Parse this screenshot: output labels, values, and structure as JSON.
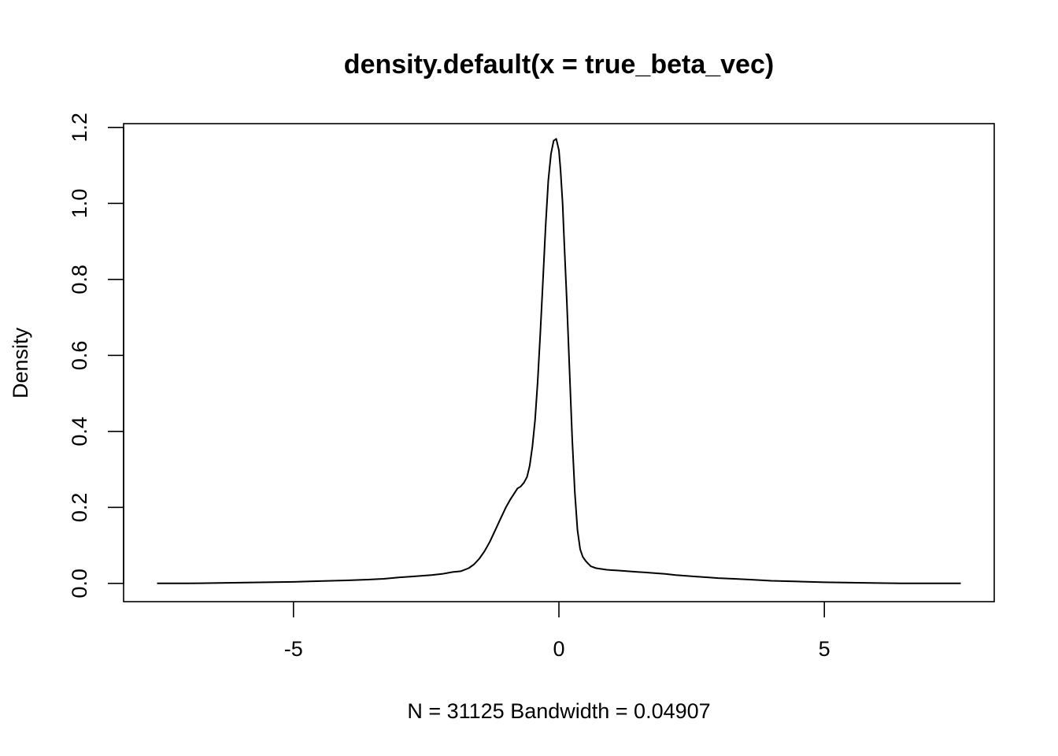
{
  "chart_data": {
    "type": "line",
    "title": "density.default(x = true_beta_vec)",
    "xlabel": "N = 31125   Bandwidth = 0.04907",
    "ylabel": "Density",
    "xlim": [
      -8.2,
      8.2
    ],
    "ylim": [
      -0.048,
      1.21
    ],
    "x_ticks": [
      -5,
      0,
      5
    ],
    "x_tick_labels": [
      "-5",
      "0",
      "5"
    ],
    "y_ticks": [
      0.0,
      0.2,
      0.4,
      0.6,
      0.8,
      1.0,
      1.2
    ],
    "y_tick_labels": [
      "0.0",
      "0.2",
      "0.4",
      "0.6",
      "0.8",
      "1.0",
      "1.2"
    ],
    "grid": false,
    "legend": "none",
    "series": [
      {
        "x": [
          -7.57,
          -7.0,
          -6.5,
          -6.0,
          -5.5,
          -5.0,
          -4.5,
          -4.0,
          -3.6,
          -3.3,
          -3.0,
          -2.8,
          -2.6,
          -2.4,
          -2.2,
          -2.0,
          -1.85,
          -1.7,
          -1.6,
          -1.5,
          -1.4,
          -1.3,
          -1.2,
          -1.1,
          -1.0,
          -0.92,
          -0.85,
          -0.78,
          -0.72,
          -0.66,
          -0.6,
          -0.55,
          -0.5,
          -0.45,
          -0.4,
          -0.35,
          -0.3,
          -0.25,
          -0.2,
          -0.15,
          -0.1,
          -0.05,
          0.0,
          0.03,
          0.07,
          0.1,
          0.15,
          0.2,
          0.25,
          0.3,
          0.35,
          0.4,
          0.45,
          0.5,
          0.55,
          0.6,
          0.7,
          0.8,
          0.9,
          1.0,
          1.1,
          1.2,
          1.3,
          1.4,
          1.5,
          1.6,
          1.7,
          1.8,
          1.9,
          2.0,
          2.2,
          2.4,
          2.6,
          2.8,
          3.0,
          3.3,
          3.6,
          4.0,
          4.5,
          5.0,
          5.5,
          6.0,
          6.5,
          7.0,
          7.57
        ],
        "y": [
          0.0,
          0.0,
          0.001,
          0.002,
          0.003,
          0.004,
          0.006,
          0.008,
          0.01,
          0.012,
          0.016,
          0.018,
          0.02,
          0.022,
          0.025,
          0.03,
          0.032,
          0.04,
          0.05,
          0.065,
          0.085,
          0.11,
          0.14,
          0.17,
          0.2,
          0.22,
          0.235,
          0.25,
          0.255,
          0.265,
          0.28,
          0.31,
          0.36,
          0.43,
          0.53,
          0.66,
          0.8,
          0.94,
          1.06,
          1.13,
          1.165,
          1.17,
          1.14,
          1.09,
          1.0,
          0.9,
          0.74,
          0.56,
          0.38,
          0.24,
          0.14,
          0.09,
          0.07,
          0.06,
          0.052,
          0.045,
          0.04,
          0.038,
          0.036,
          0.035,
          0.034,
          0.033,
          0.032,
          0.031,
          0.03,
          0.029,
          0.028,
          0.027,
          0.026,
          0.025,
          0.022,
          0.02,
          0.018,
          0.016,
          0.014,
          0.012,
          0.01,
          0.007,
          0.005,
          0.003,
          0.002,
          0.001,
          0.0,
          0.0,
          0.0
        ]
      }
    ]
  }
}
